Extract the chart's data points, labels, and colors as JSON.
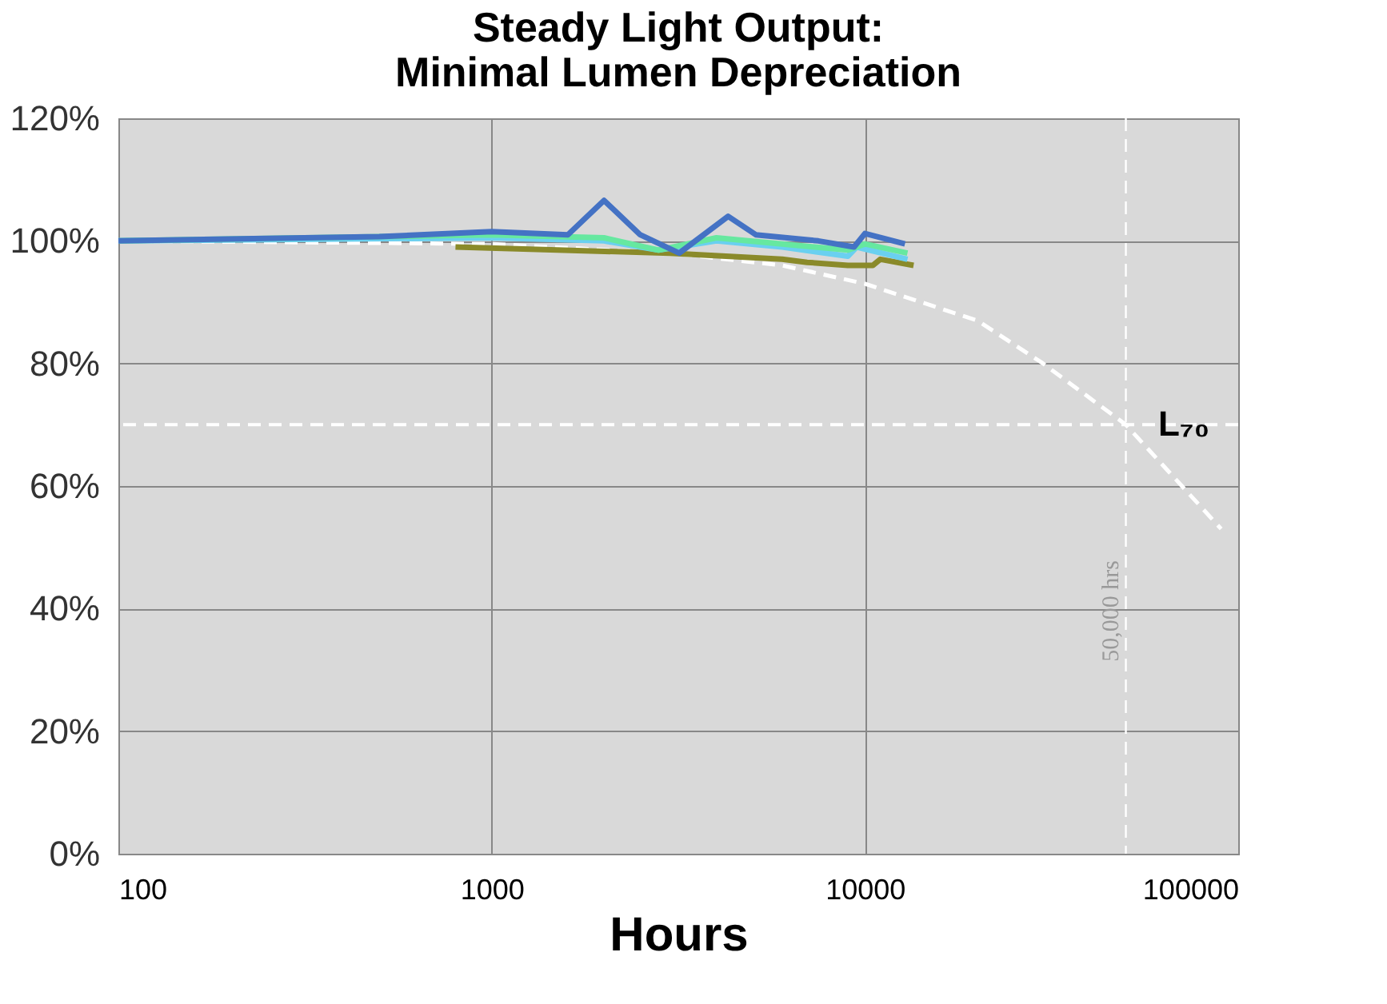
{
  "chart_data": {
    "type": "line",
    "title": [
      "Steady Light Output:",
      "Minimal Lumen Depreciation"
    ],
    "xlabel": "Hours",
    "log": "x",
    "xlim": [
      100,
      100000
    ],
    "xticks": [
      100,
      1000,
      10000,
      100000
    ],
    "ylim": [
      0,
      120
    ],
    "yticks": [
      {
        "value": 0,
        "label": "0%"
      },
      {
        "value": 20,
        "label": "20%"
      },
      {
        "value": 40,
        "label": "40%"
      },
      {
        "value": 60,
        "label": "60%"
      },
      {
        "value": 80,
        "label": "80%"
      },
      {
        "value": 100,
        "label": "100%"
      },
      {
        "value": 120,
        "label": "120%"
      }
    ],
    "grid": true,
    "marker": "none",
    "series": [
      {
        "color": "#ffffff",
        "line_style": "dashed",
        "x": [
          100,
          1000,
          3000,
          6000,
          10000,
          20000,
          30000,
          50000,
          90000
        ],
        "values": [
          100,
          99.5,
          98,
          96,
          93,
          87,
          80,
          70,
          53
        ]
      },
      {
        "color": "#8a8a2a",
        "line_style": "solid",
        "x": [
          800,
          1500,
          3000,
          6000,
          7000,
          9000,
          10500,
          11000,
          13500
        ],
        "values": [
          99,
          98.5,
          98,
          97,
          96.5,
          96,
          96,
          97,
          96
        ]
      },
      {
        "color": "#6ad0f0",
        "line_style": "solid",
        "x": [
          100,
          1000,
          2000,
          2800,
          4000,
          6000,
          9000,
          9500,
          13000
        ],
        "values": [
          100,
          100.5,
          100,
          98.5,
          100,
          99,
          97.5,
          99,
          97
        ]
      },
      {
        "color": "#66e8a0",
        "line_style": "solid",
        "x": [
          100,
          1000,
          2000,
          2800,
          4000,
          6000,
          9000,
          10000,
          13000
        ],
        "values": [
          100,
          101,
          100.5,
          98.5,
          100.5,
          99.5,
          98.5,
          99.5,
          98
        ]
      },
      {
        "color": "#4472c4",
        "line_style": "solid",
        "x": [
          100,
          500,
          1000,
          1600,
          2000,
          2500,
          3180,
          4300,
          5100,
          7500,
          9350,
          10000,
          12800
        ],
        "values": [
          100,
          100.7,
          101.5,
          101,
          106.6,
          101,
          98,
          104,
          101,
          100,
          99,
          101.2,
          99.5
        ]
      }
    ],
    "ref_lines": [
      {
        "axis": "y",
        "value": 70,
        "label": "L₇₀",
        "color": "#ffffff",
        "line_style": "dashed"
      },
      {
        "axis": "x",
        "value": 50000,
        "label": "50,000 hrs",
        "color": "#ffffff",
        "line_style": "dashed"
      }
    ]
  }
}
